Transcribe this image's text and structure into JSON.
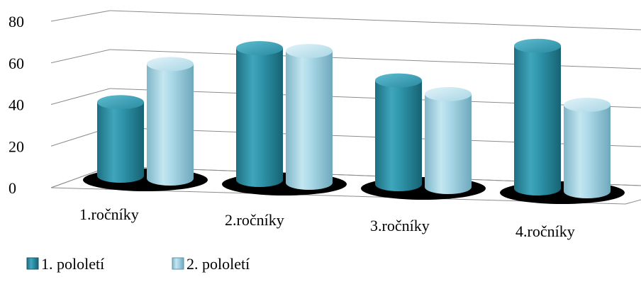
{
  "chart_data": {
    "type": "bar",
    "style": "3d-cylinder",
    "categories": [
      "1.ročníky",
      "2.ročníky",
      "3.ročníky",
      "4.ročníky"
    ],
    "series": [
      {
        "name": "1. pololetí",
        "values": [
          34,
          61,
          48,
          66
        ],
        "color": "#2B8FA5"
      },
      {
        "name": "2. pololetí",
        "values": [
          53,
          61,
          43,
          40
        ],
        "color": "#9CCFE0"
      }
    ],
    "y_ticks": [
      "0",
      "20",
      "40",
      "60",
      "80"
    ],
    "ylim": [
      0,
      80
    ],
    "grid": true,
    "legend_position": "bottom-left"
  }
}
